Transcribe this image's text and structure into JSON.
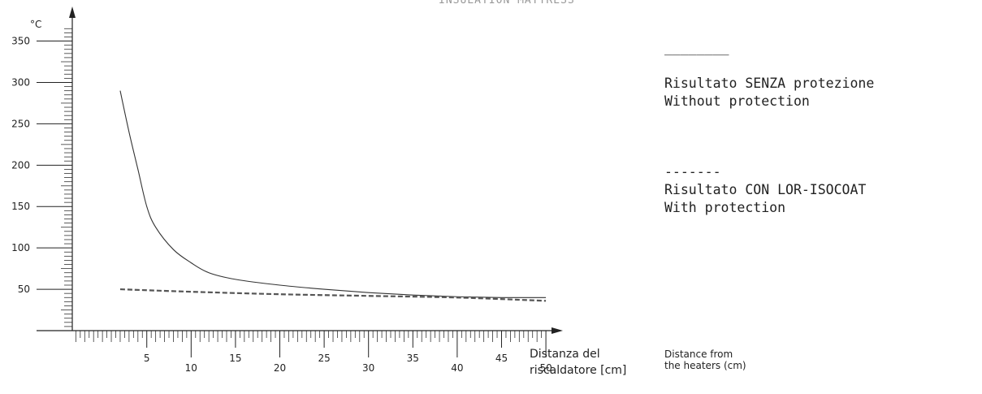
{
  "top_title": "INSULATION MATTRESS",
  "chart_data": {
    "type": "line",
    "ylabel": "°C",
    "xlabel_it_line1": "Distanza del",
    "xlabel_it_line2": "riscaldatore [cm]",
    "xlabel_en_line1": "Distance from",
    "xlabel_en_line2": "the heaters (cm)",
    "xlim": [
      -3.4,
      51
    ],
    "ylim": [
      0,
      380
    ],
    "yticks": [
      50,
      100,
      150,
      200,
      250,
      300,
      350
    ],
    "xticks": [
      5,
      10,
      15,
      20,
      25,
      30,
      35,
      40,
      45,
      50
    ],
    "grid": false,
    "series": [
      {
        "name": "Risultato SENZA  protezione",
        "style": "solid",
        "color": "#333333",
        "x": [
          2,
          3,
          4,
          5,
          6,
          8,
          10,
          12,
          15,
          20,
          25,
          30,
          35,
          40,
          45,
          50
        ],
        "y": [
          290,
          240,
          195,
          150,
          125,
          98,
          82,
          70,
          62,
          55,
          50,
          46,
          43,
          41,
          40,
          40
        ]
      },
      {
        "name": "Risultato CON LOR-ISOCOAT",
        "style": "dashed",
        "color": "#555555",
        "x": [
          2,
          10,
          20,
          30,
          40,
          50
        ],
        "y": [
          50,
          47,
          44,
          42,
          40,
          36
        ]
      }
    ]
  },
  "legend": {
    "solid_marker": "________",
    "solid_label_it": "Risultato SENZA  protezione",
    "solid_label_en": "Without protection",
    "dashed_marker": "-------",
    "dashed_label_it": "Risultato CON LOR-ISOCOAT",
    "dashed_label_en": "With protection"
  }
}
